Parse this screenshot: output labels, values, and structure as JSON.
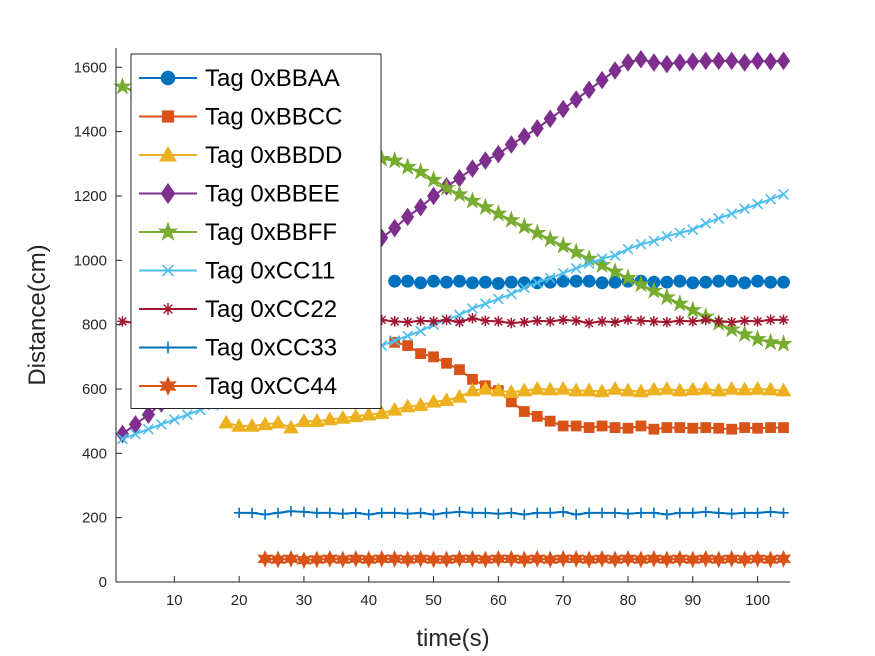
{
  "chart_data": {
    "type": "line",
    "title": "",
    "xlabel": "time(s)",
    "ylabel": "Distance(cm)",
    "xlim": [
      1,
      105
    ],
    "ylim": [
      0,
      1660
    ],
    "xticks": [
      10,
      20,
      30,
      40,
      50,
      60,
      70,
      80,
      90,
      100
    ],
    "yticks": [
      0,
      200,
      400,
      600,
      800,
      1000,
      1200,
      1400,
      1600
    ],
    "grid": false,
    "legend_position": "top-left",
    "series": [
      {
        "name": "Tag 0xBBAA",
        "color": "#0072BD",
        "marker": "circle",
        "x": [
          44,
          46,
          48,
          50,
          52,
          54,
          56,
          58,
          60,
          62,
          64,
          66,
          68,
          70,
          72,
          74,
          76,
          78,
          80,
          82,
          84,
          86,
          88,
          90,
          92,
          94,
          96,
          98,
          100,
          102,
          104
        ],
        "y": [
          935,
          935,
          930,
          935,
          932,
          935,
          930,
          932,
          928,
          932,
          930,
          930,
          932,
          935,
          935,
          935,
          930,
          932,
          935,
          935,
          932,
          932,
          935,
          930,
          932,
          935,
          935,
          930,
          935,
          932,
          932
        ]
      },
      {
        "name": "Tag 0xBBCC",
        "color": "#D95319",
        "marker": "square",
        "x": [
          44,
          46,
          48,
          50,
          52,
          54,
          56,
          58,
          60,
          62,
          64,
          66,
          68,
          70,
          72,
          74,
          76,
          78,
          80,
          82,
          84,
          86,
          88,
          90,
          92,
          94,
          96,
          98,
          100,
          102,
          104
        ],
        "y": [
          745,
          735,
          710,
          700,
          680,
          660,
          630,
          610,
          595,
          560,
          530,
          515,
          500,
          485,
          485,
          480,
          485,
          480,
          478,
          485,
          475,
          480,
          480,
          478,
          480,
          478,
          475,
          480,
          478,
          480,
          480
        ]
      },
      {
        "name": "Tag 0xBBDD",
        "color": "#EDB120",
        "marker": "triangle",
        "x": [
          18,
          20,
          22,
          24,
          26,
          28,
          30,
          32,
          34,
          36,
          38,
          40,
          42,
          44,
          46,
          48,
          50,
          52,
          54,
          56,
          58,
          60,
          62,
          64,
          66,
          68,
          70,
          72,
          74,
          76,
          78,
          80,
          82,
          84,
          86,
          88,
          90,
          92,
          94,
          96,
          98,
          100,
          102,
          104
        ],
        "y": [
          495,
          485,
          485,
          490,
          495,
          480,
          500,
          500,
          505,
          510,
          515,
          520,
          525,
          535,
          545,
          550,
          560,
          565,
          575,
          595,
          600,
          595,
          590,
          595,
          600,
          598,
          600,
          595,
          595,
          592,
          600,
          595,
          592,
          598,
          600,
          595,
          598,
          600,
          595,
          600,
          598,
          600,
          598,
          595
        ]
      },
      {
        "name": "Tag 0xBBEE",
        "color": "#7E2F8E",
        "marker": "diamond",
        "x": [
          2,
          4,
          6,
          8,
          10,
          12,
          14,
          16,
          18,
          20,
          22,
          24,
          26,
          28,
          30,
          32,
          34,
          36,
          38,
          40,
          42,
          44,
          46,
          48,
          50,
          52,
          54,
          56,
          58,
          60,
          62,
          64,
          66,
          68,
          70,
          72,
          74,
          76,
          78,
          80,
          82,
          84,
          86,
          88,
          90,
          92,
          94,
          96,
          98,
          100,
          102,
          104
        ],
        "y": [
          460,
          490,
          520,
          555,
          590,
          625,
          660,
          700,
          735,
          770,
          800,
          835,
          870,
          900,
          930,
          960,
          990,
          1015,
          1040,
          1060,
          1070,
          1100,
          1135,
          1165,
          1200,
          1230,
          1255,
          1285,
          1310,
          1330,
          1360,
          1385,
          1410,
          1440,
          1470,
          1500,
          1530,
          1560,
          1590,
          1615,
          1625,
          1615,
          1610,
          1615,
          1618,
          1620,
          1620,
          1620,
          1615,
          1620,
          1618,
          1620
        ]
      },
      {
        "name": "Tag 0xBBFF",
        "color": "#77AC30",
        "marker": "pentagram",
        "x": [
          2,
          4,
          6,
          8,
          10,
          12,
          14,
          16,
          18,
          20,
          22,
          24,
          26,
          28,
          30,
          32,
          34,
          36,
          38,
          40,
          42,
          44,
          46,
          48,
          50,
          52,
          54,
          56,
          58,
          60,
          62,
          64,
          66,
          68,
          70,
          72,
          74,
          76,
          78,
          80,
          82,
          84,
          86,
          88,
          90,
          92,
          94,
          96,
          98,
          100,
          102,
          104
        ],
        "y": [
          1540,
          1525,
          1510,
          1495,
          1480,
          1465,
          1450,
          1435,
          1420,
          1405,
          1395,
          1385,
          1375,
          1360,
          1350,
          1345,
          1335,
          1330,
          1325,
          1320,
          1315,
          1310,
          1290,
          1275,
          1250,
          1225,
          1205,
          1185,
          1165,
          1145,
          1125,
          1105,
          1085,
          1065,
          1045,
          1025,
          1005,
          985,
          965,
          945,
          925,
          905,
          885,
          865,
          845,
          825,
          805,
          785,
          770,
          755,
          745,
          740
        ]
      },
      {
        "name": "Tag 0xCC11",
        "color": "#4DBEEE",
        "marker": "x",
        "x": [
          2,
          4,
          6,
          8,
          10,
          12,
          14,
          16,
          18,
          20,
          22,
          24,
          26,
          28,
          30,
          32,
          34,
          36,
          38,
          40,
          42,
          44,
          46,
          48,
          50,
          52,
          54,
          56,
          58,
          60,
          62,
          64,
          66,
          68,
          70,
          72,
          74,
          76,
          78,
          80,
          82,
          84,
          86,
          88,
          90,
          92,
          94,
          96,
          98,
          100,
          102,
          104
        ],
        "y": [
          445,
          460,
          475,
          490,
          505,
          520,
          535,
          550,
          565,
          580,
          595,
          610,
          620,
          635,
          650,
          660,
          675,
          690,
          705,
          720,
          735,
          750,
          765,
          780,
          800,
          815,
          830,
          850,
          865,
          880,
          895,
          915,
          930,
          945,
          960,
          975,
          990,
          1005,
          1015,
          1035,
          1050,
          1060,
          1075,
          1085,
          1095,
          1115,
          1130,
          1145,
          1160,
          1175,
          1190,
          1205
        ]
      },
      {
        "name": "Tag 0xCC22",
        "color": "#A2142F",
        "marker": "asterisk",
        "x": [
          2,
          4,
          6,
          8,
          10,
          12,
          14,
          16,
          18,
          20,
          22,
          24,
          26,
          28,
          30,
          32,
          34,
          36,
          38,
          40,
          42,
          44,
          46,
          48,
          50,
          52,
          54,
          56,
          58,
          60,
          62,
          64,
          66,
          68,
          70,
          72,
          74,
          76,
          78,
          80,
          82,
          84,
          86,
          88,
          90,
          92,
          94,
          96,
          98,
          100,
          102,
          104
        ],
        "y": [
          810,
          805,
          815,
          808,
          812,
          805,
          810,
          815,
          808,
          812,
          805,
          810,
          815,
          805,
          810,
          815,
          808,
          810,
          812,
          805,
          815,
          810,
          808,
          812,
          810,
          815,
          808,
          820,
          812,
          810,
          805,
          808,
          812,
          810,
          815,
          812,
          805,
          810,
          808,
          815,
          812,
          810,
          808,
          812,
          810,
          815,
          810,
          808,
          812,
          810,
          815,
          815
        ]
      },
      {
        "name": "Tag 0xCC33",
        "color": "#0072BD",
        "marker": "plus",
        "x": [
          20,
          22,
          24,
          26,
          28,
          30,
          32,
          34,
          36,
          38,
          40,
          42,
          44,
          46,
          48,
          50,
          52,
          54,
          56,
          58,
          60,
          62,
          64,
          66,
          68,
          70,
          72,
          74,
          76,
          78,
          80,
          82,
          84,
          86,
          88,
          90,
          92,
          94,
          96,
          98,
          100,
          102,
          104
        ],
        "y": [
          215,
          215,
          210,
          215,
          220,
          218,
          215,
          215,
          212,
          215,
          210,
          215,
          215,
          212,
          215,
          210,
          215,
          218,
          215,
          215,
          212,
          215,
          210,
          215,
          215,
          218,
          210,
          215,
          215,
          215,
          212,
          215,
          215,
          210,
          215,
          215,
          218,
          215,
          212,
          215,
          215,
          218,
          215
        ]
      },
      {
        "name": "Tag 0xCC44",
        "color": "#D95319",
        "marker": "hexagram",
        "x": [
          24,
          26,
          28,
          30,
          32,
          34,
          36,
          38,
          40,
          42,
          44,
          46,
          48,
          50,
          52,
          54,
          56,
          58,
          60,
          62,
          64,
          66,
          68,
          70,
          72,
          74,
          76,
          78,
          80,
          82,
          84,
          86,
          88,
          90,
          92,
          94,
          96,
          98,
          100,
          102,
          104
        ],
        "y": [
          72,
          70,
          72,
          68,
          70,
          72,
          70,
          72,
          70,
          72,
          72,
          70,
          72,
          70,
          70,
          72,
          72,
          70,
          72,
          72,
          70,
          72,
          70,
          72,
          72,
          70,
          72,
          70,
          72,
          70,
          72,
          70,
          72,
          70,
          72,
          70,
          72,
          70,
          72,
          70,
          72
        ]
      }
    ]
  }
}
